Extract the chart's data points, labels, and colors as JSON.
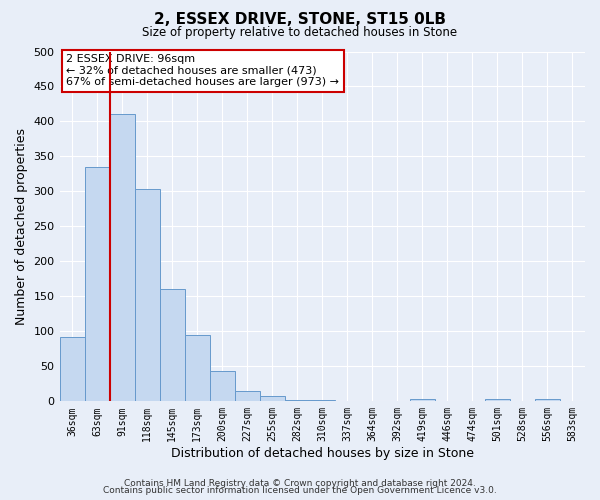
{
  "title": "2, ESSEX DRIVE, STONE, ST15 0LB",
  "subtitle": "Size of property relative to detached houses in Stone",
  "xlabel": "Distribution of detached houses by size in Stone",
  "ylabel": "Number of detached properties",
  "bar_color": "#c5d8f0",
  "bar_edge_color": "#6699cc",
  "background_color": "#e8eef8",
  "plot_bg_color": "#e8eef8",
  "grid_color": "#ffffff",
  "categories": [
    "36sqm",
    "63sqm",
    "91sqm",
    "118sqm",
    "145sqm",
    "173sqm",
    "200sqm",
    "227sqm",
    "255sqm",
    "282sqm",
    "310sqm",
    "337sqm",
    "364sqm",
    "392sqm",
    "419sqm",
    "446sqm",
    "474sqm",
    "501sqm",
    "528sqm",
    "556sqm",
    "583sqm"
  ],
  "values": [
    92,
    335,
    410,
    303,
    160,
    95,
    44,
    15,
    7,
    2,
    2,
    0,
    0,
    0,
    3,
    0,
    0,
    3,
    0,
    3,
    0
  ],
  "ylim": [
    0,
    500
  ],
  "yticks": [
    0,
    50,
    100,
    150,
    200,
    250,
    300,
    350,
    400,
    450,
    500
  ],
  "vline_color": "#cc0000",
  "annotation_text": "2 ESSEX DRIVE: 96sqm\n← 32% of detached houses are smaller (473)\n67% of semi-detached houses are larger (973) →",
  "annotation_box_color": "#ffffff",
  "annotation_box_edge": "#cc0000",
  "footer1": "Contains HM Land Registry data © Crown copyright and database right 2024.",
  "footer2": "Contains public sector information licensed under the Open Government Licence v3.0."
}
